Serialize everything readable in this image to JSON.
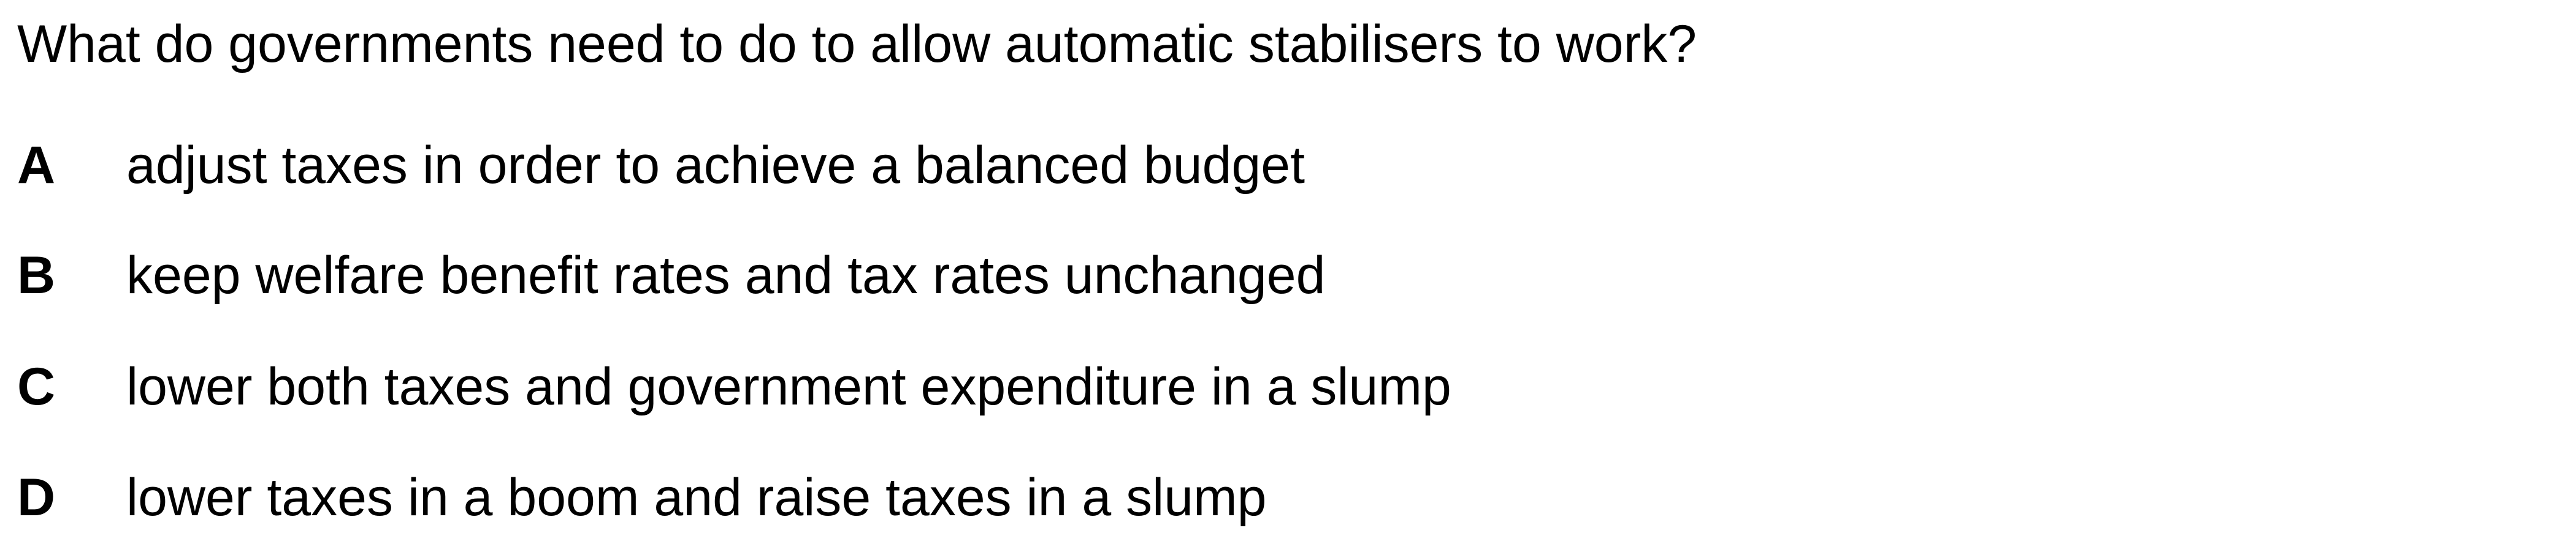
{
  "question": "What do governments need to do to allow automatic stabilisers to work?",
  "options": [
    {
      "letter": "A",
      "text": "adjust taxes in order to achieve a balanced budget"
    },
    {
      "letter": "B",
      "text": "keep welfare benefit rates and tax rates unchanged"
    },
    {
      "letter": "C",
      "text": "lower both taxes and government expenditure in a slump"
    },
    {
      "letter": "D",
      "text": "lower taxes in a boom and raise taxes in a slump"
    }
  ]
}
